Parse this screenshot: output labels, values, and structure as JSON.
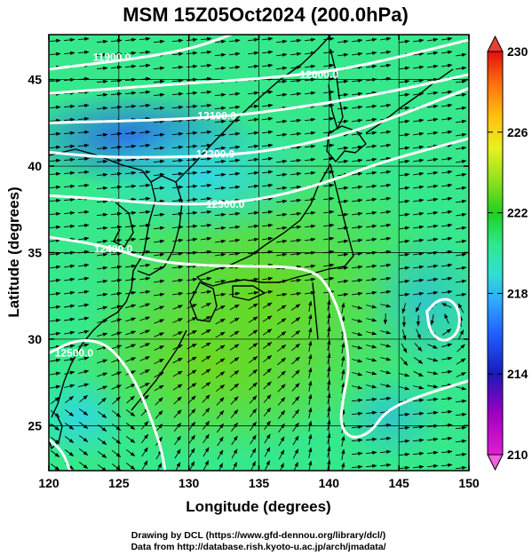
{
  "title": "MSM 15Z05Oct2024 (200.0hPa)",
  "xlabel": "Longitude (degrees)",
  "ylabel": "Latitude  (degrees)",
  "credits": [
    "Drawing by DCL (https://www.gfd-dennou.org/library/dcl/)",
    "Data from http://database.rish.kyoto-u.ac.jp/arch/jmadata/"
  ],
  "map": {
    "lon_range": [
      120,
      150
    ],
    "lat_range": [
      22.4,
      47.6
    ],
    "lon_ticks": [
      "120",
      "125",
      "130",
      "135",
      "140",
      "145",
      "150"
    ],
    "lat_ticks": [
      "25",
      "30",
      "35",
      "40",
      "45"
    ],
    "grid_lons": [
      120,
      125,
      130,
      135,
      140,
      145,
      150
    ],
    "grid_lats": [
      25,
      30,
      35,
      40,
      45
    ]
  },
  "colorbar": {
    "min": 210,
    "max": 230,
    "tick_values": [
      230,
      226,
      222,
      218,
      214,
      210
    ],
    "tick_labels": [
      "230",
      "226",
      "222",
      "218",
      "214",
      "210"
    ]
  },
  "contours": [
    {
      "label": "11900.0",
      "label_lon": 124.5,
      "label_lat": 46.3,
      "points": [
        [
          120,
          45.6
        ],
        [
          123,
          45.9
        ],
        [
          126,
          46.2
        ],
        [
          129,
          46.6
        ],
        [
          131,
          47.0
        ],
        [
          133,
          47.6
        ]
      ]
    },
    {
      "label": "12000.0",
      "label_lon": 139.3,
      "label_lat": 45.3,
      "points": [
        [
          120,
          44.2
        ],
        [
          125,
          44.5
        ],
        [
          130,
          44.8
        ],
        [
          134,
          45.0
        ],
        [
          137,
          45.2
        ],
        [
          141,
          45.6
        ],
        [
          145,
          46.3
        ],
        [
          150,
          47.3
        ]
      ]
    },
    {
      "label": "12100.0",
      "label_lon": 132.0,
      "label_lat": 42.9,
      "points": [
        [
          120,
          42.5
        ],
        [
          125,
          42.6
        ],
        [
          129,
          42.7
        ],
        [
          133,
          42.9
        ],
        [
          137,
          43.3
        ],
        [
          141,
          43.8
        ],
        [
          145,
          44.4
        ],
        [
          150,
          45.3
        ]
      ]
    },
    {
      "label": "12200.0",
      "label_lon": 131.9,
      "label_lat": 40.7,
      "points": [
        [
          120,
          40.8
        ],
        [
          124,
          40.5
        ],
        [
          128,
          40.5
        ],
        [
          132,
          40.6
        ],
        [
          136,
          40.9
        ],
        [
          140,
          41.6
        ],
        [
          144,
          42.6
        ],
        [
          150,
          44.5
        ]
      ]
    },
    {
      "label": "12300.0",
      "label_lon": 132.6,
      "label_lat": 37.8,
      "points": [
        [
          120,
          38.3
        ],
        [
          124,
          38.1
        ],
        [
          128,
          37.8
        ],
        [
          132,
          37.8
        ],
        [
          136,
          38.2
        ],
        [
          140,
          39.1
        ],
        [
          144,
          40.3
        ],
        [
          150,
          41.6
        ]
      ]
    },
    {
      "label": "12400.0",
      "label_lon": 124.6,
      "label_lat": 35.2,
      "points": [
        [
          120,
          35.9
        ],
        [
          124,
          35.4
        ],
        [
          127,
          34.6
        ],
        [
          130,
          34.3
        ],
        [
          134,
          34.2
        ],
        [
          137,
          34.2
        ],
        [
          139,
          33.9
        ],
        [
          140,
          33.0
        ],
        [
          141,
          31.0
        ],
        [
          141.5,
          28.5
        ],
        [
          141,
          26.5
        ],
        [
          140.8,
          25.0
        ],
        [
          141.6,
          24.2
        ],
        [
          143,
          24.6
        ],
        [
          144,
          25.8
        ],
        [
          146,
          26.6
        ],
        [
          150,
          27.6
        ]
      ]
    },
    {
      "label": "12500.0",
      "label_lon": 121.8,
      "label_lat": 29.2,
      "points": [
        [
          120,
          29.2
        ],
        [
          122,
          30.0
        ],
        [
          124,
          29.8
        ],
        [
          125.5,
          28.5
        ],
        [
          126.8,
          26.5
        ],
        [
          128,
          23.8
        ],
        [
          128.3,
          22.4
        ]
      ]
    },
    {
      "label": "",
      "label_lon": 0,
      "label_lat": 0,
      "points": [
        [
          120,
          24.2
        ],
        [
          121,
          23.5
        ],
        [
          121.5,
          22.4
        ]
      ]
    },
    {
      "label": "",
      "label_lon": 0,
      "label_lat": 0,
      "points": [
        [
          147.0,
          31.6
        ],
        [
          147.8,
          32.3
        ],
        [
          148.8,
          32.3
        ],
        [
          149.4,
          31.4
        ],
        [
          149.2,
          30.3
        ],
        [
          148.2,
          29.8
        ],
        [
          147.2,
          30.4
        ],
        [
          147.0,
          31.6
        ]
      ]
    }
  ]
}
